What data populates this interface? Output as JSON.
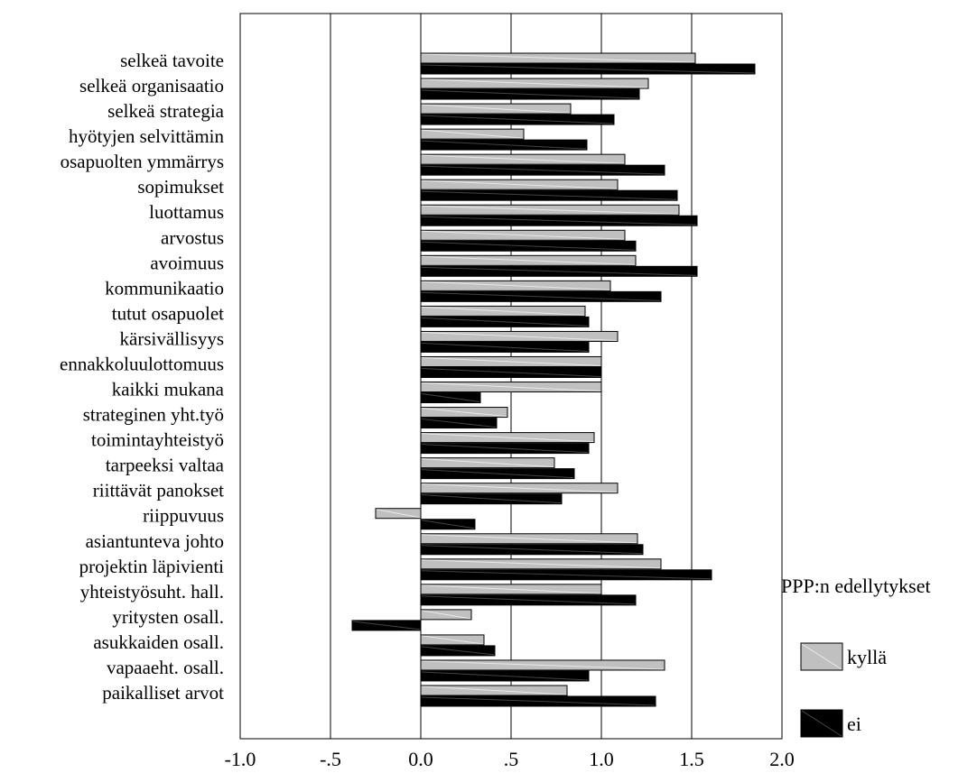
{
  "chart_data": {
    "type": "bar",
    "orientation": "horizontal",
    "categories": [
      "selkeä tavoite",
      "selkeä organisaatio",
      "selkeä strategia",
      "hyötyjen selvittämin",
      "osapuolten ymmärrys",
      "sopimukset",
      "luottamus",
      "arvostus",
      "avoimuus",
      "kommunikaatio",
      "tutut osapuolet",
      "kärsivällisyys",
      "ennakkoluulottomuus",
      "kaikki mukana",
      "strateginen yht.työ",
      "toimintayhteistyö",
      "tarpeeksi valtaa",
      "riittävät panokset",
      "riippuvuus",
      "asiantunteva johto",
      "projektin läpivienti",
      "yhteistyösuht. hall.",
      "yritysten osall.",
      "asukkaiden osall.",
      "vapaaeht. osall.",
      "paikalliset arvot"
    ],
    "series": [
      {
        "name": "kyllä",
        "color": "#c0c0c0",
        "values": [
          1.52,
          1.26,
          0.83,
          0.57,
          1.13,
          1.09,
          1.43,
          1.13,
          1.19,
          1.05,
          0.91,
          1.09,
          1.0,
          1.0,
          0.48,
          0.96,
          0.74,
          1.09,
          -0.25,
          1.2,
          1.33,
          1.0,
          0.28,
          0.35,
          1.35,
          0.81
        ]
      },
      {
        "name": "ei",
        "color": "#000000",
        "values": [
          1.85,
          1.21,
          1.07,
          0.92,
          1.35,
          1.42,
          1.53,
          1.19,
          1.53,
          1.33,
          0.93,
          0.93,
          1.0,
          0.33,
          0.42,
          0.93,
          0.85,
          0.78,
          0.3,
          1.23,
          1.61,
          1.19,
          -0.38,
          0.41,
          0.93,
          1.3
        ]
      }
    ],
    "xlim": [
      -1.0,
      2.0
    ],
    "xticks": [
      -1.0,
      -0.5,
      0.0,
      0.5,
      1.0,
      1.5,
      2.0
    ],
    "xtick_labels": [
      "-1.0",
      "-.5",
      "0.0",
      ".5",
      "1.0",
      "1.5",
      "2.0"
    ],
    "grid": "vertical",
    "legend_title": "PPP:n edellytykset",
    "legend_position": "right"
  }
}
